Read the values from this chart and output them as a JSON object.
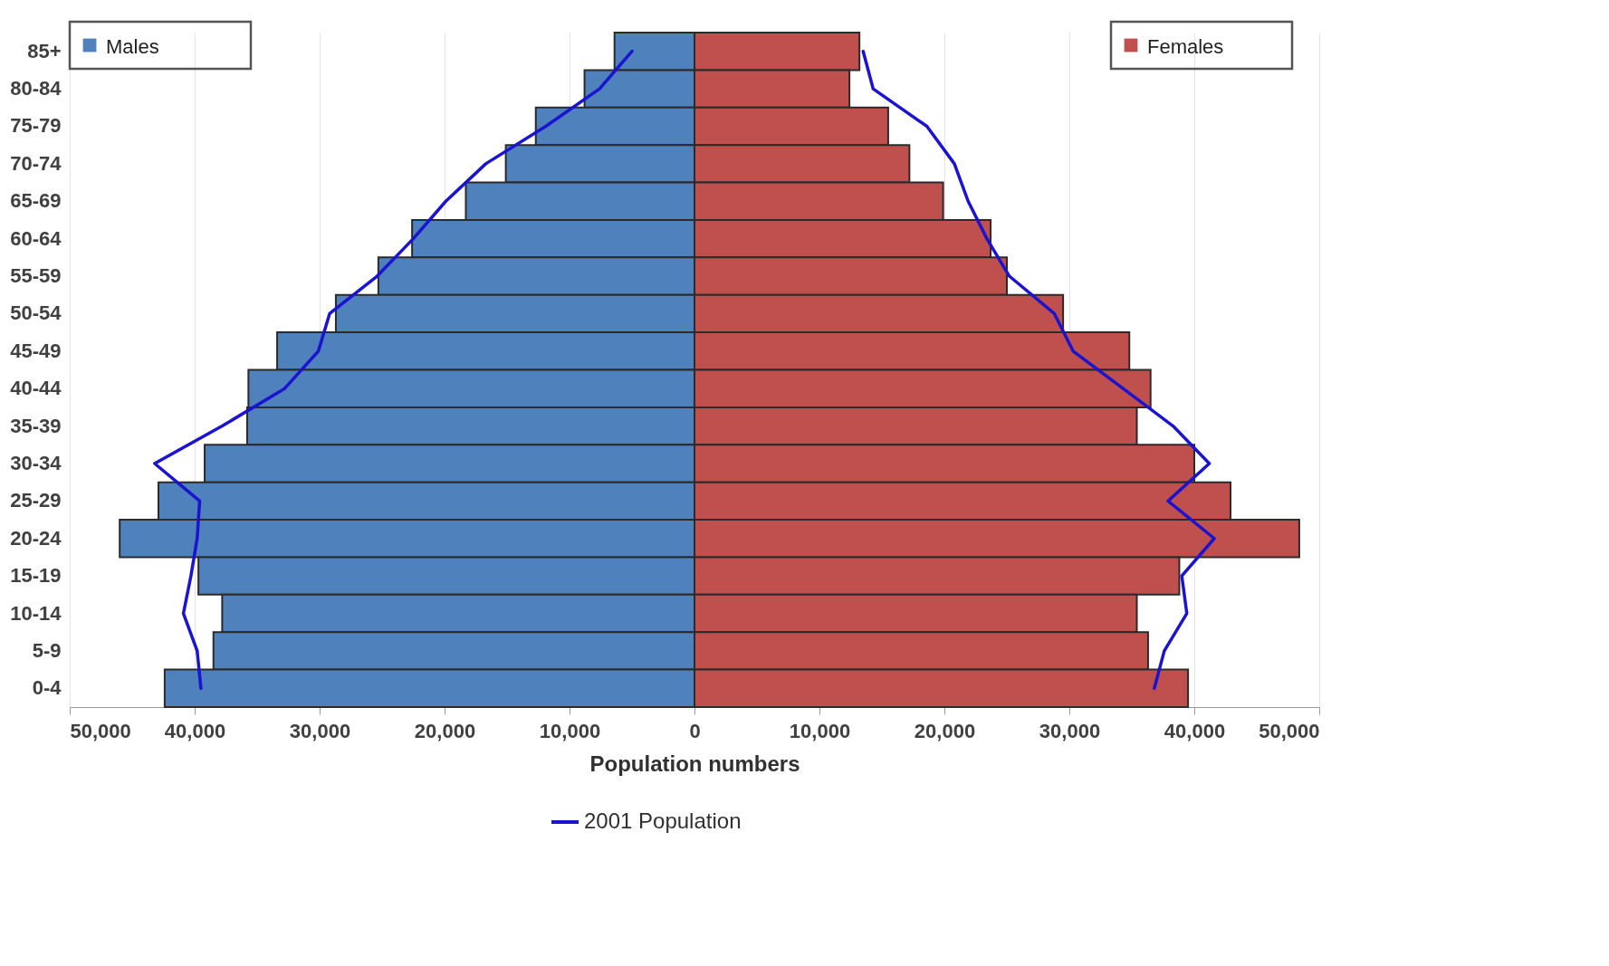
{
  "chart_data": {
    "type": "bar",
    "orientation": "horizontal",
    "stacked": true,
    "xlabel": "Population numbers",
    "categories": [
      "85+",
      "80-84",
      "75-79",
      "70-74",
      "65-69",
      "60-64",
      "55-59",
      "50-54",
      "45-49",
      "40-44",
      "35-39",
      "30-34",
      "25-29",
      "20-24",
      "15-19",
      "10-14",
      "5-9",
      "0-4"
    ],
    "series": [
      {
        "name": "Males",
        "color": "#4f81bd",
        "values": [
          -6400,
          -8800,
          -12700,
          -15100,
          -18300,
          -22600,
          -25300,
          -28700,
          -33400,
          -35700,
          -35800,
          -39200,
          -42900,
          -46000,
          -39700,
          -37800,
          -38500,
          -42400
        ]
      },
      {
        "name": "Females",
        "color": "#c0504d",
        "values": [
          13200,
          12400,
          15500,
          17200,
          19900,
          23700,
          25000,
          29500,
          34800,
          36500,
          35400,
          40000,
          42900,
          48400,
          38800,
          35400,
          36300,
          39500
        ]
      },
      {
        "name": "2001 Population",
        "type": "line",
        "color": "#1a14d0",
        "values": [
          -5000,
          -7600,
          -11900,
          -16700,
          -19900,
          -22500,
          -25400,
          -29200,
          -30100,
          -32800,
          -37800,
          -43200,
          -39600,
          -39800,
          -40300,
          -40900,
          -39800,
          -39500
        ]
      },
      {
        "type": "line",
        "color": "#1a14d0",
        "values": [
          13500,
          14300,
          18600,
          20800,
          21900,
          23400,
          25200,
          28800,
          30300,
          34300,
          38300,
          41200,
          37900,
          41600,
          39000,
          39400,
          37600,
          36800
        ]
      }
    ],
    "xlim": [
      -50000,
      50000
    ],
    "xticks": [
      {
        "value": -50000,
        "label": "50,000"
      },
      {
        "value": -40000,
        "label": "40,000"
      },
      {
        "value": -30000,
        "label": "30,000"
      },
      {
        "value": -20000,
        "label": "20,000"
      },
      {
        "value": -10000,
        "label": "10,000"
      },
      0,
      {
        "value": 10000,
        "label": "10,000"
      },
      {
        "value": 20000,
        "label": "20,000"
      },
      {
        "value": 30000,
        "label": "30,000"
      },
      {
        "value": 40000,
        "label": "40,000"
      },
      {
        "value": 50000,
        "label": "50,000"
      }
    ],
    "grid": "x",
    "legend": "bottom",
    "line_style": "solid",
    "marker": "none"
  }
}
